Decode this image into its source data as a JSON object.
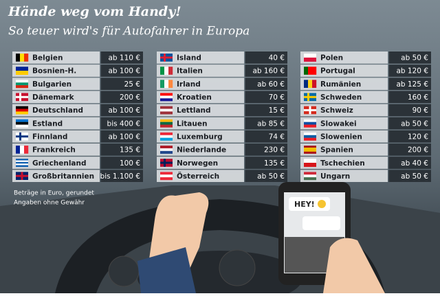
{
  "header": {
    "title": "Hände weg vom Handy!",
    "subtitle": "So teuer wird's für Autofahrer in Europa"
  },
  "table": {
    "columns": [
      {
        "rows": [
          {
            "country": "Belgien",
            "fine": "ab 110 €"
          },
          {
            "country": "Bosnien-H.",
            "fine": "ab 100 €"
          },
          {
            "country": "Bulgarien",
            "fine": "25 €"
          },
          {
            "country": "Dänemark",
            "fine": "200 €"
          },
          {
            "country": "Deutschland",
            "fine": "ab 100 €"
          },
          {
            "country": "Estland",
            "fine": "bis 400 €"
          },
          {
            "country": "Finnland",
            "fine": "ab 100 €"
          },
          {
            "country": "Frankreich",
            "fine": "135 €"
          },
          {
            "country": "Griechenland",
            "fine": "100 €"
          },
          {
            "country": "Großbritannien",
            "fine": "bis 1.100 €"
          }
        ]
      },
      {
        "rows": [
          {
            "country": "Island",
            "fine": "40 €"
          },
          {
            "country": "Italien",
            "fine": "ab 160 €"
          },
          {
            "country": "Irland",
            "fine": "ab 60 €"
          },
          {
            "country": "Kroatien",
            "fine": "70 €"
          },
          {
            "country": "Lettland",
            "fine": "15 €"
          },
          {
            "country": "Litauen",
            "fine": "ab 85 €"
          },
          {
            "country": "Luxemburg",
            "fine": "74 €"
          },
          {
            "country": "Niederlande",
            "fine": "230 €"
          },
          {
            "country": "Norwegen",
            "fine": "135 €"
          },
          {
            "country": "Österreich",
            "fine": "ab 50 €"
          }
        ]
      },
      {
        "rows": [
          {
            "country": "Polen",
            "fine": "ab 50 €"
          },
          {
            "country": "Portugal",
            "fine": "ab 120 €"
          },
          {
            "country": "Rumänien",
            "fine": "ab 125 €"
          },
          {
            "country": "Schweden",
            "fine": "160 €"
          },
          {
            "country": "Schweiz",
            "fine": "90 €"
          },
          {
            "country": "Slowakei",
            "fine": "ab 50 €"
          },
          {
            "country": "Slowenien",
            "fine": "120 €"
          },
          {
            "country": "Spanien",
            "fine": "200 €"
          },
          {
            "country": "Tschechien",
            "fine": "ab 40 €"
          },
          {
            "country": "Ungarn",
            "fine": "ab 50 €"
          }
        ]
      }
    ]
  },
  "notes": [
    "Beträge in Euro, gerundet",
    "Angaben ohne Gewähr"
  ],
  "phone": {
    "message": "HEY!"
  }
}
